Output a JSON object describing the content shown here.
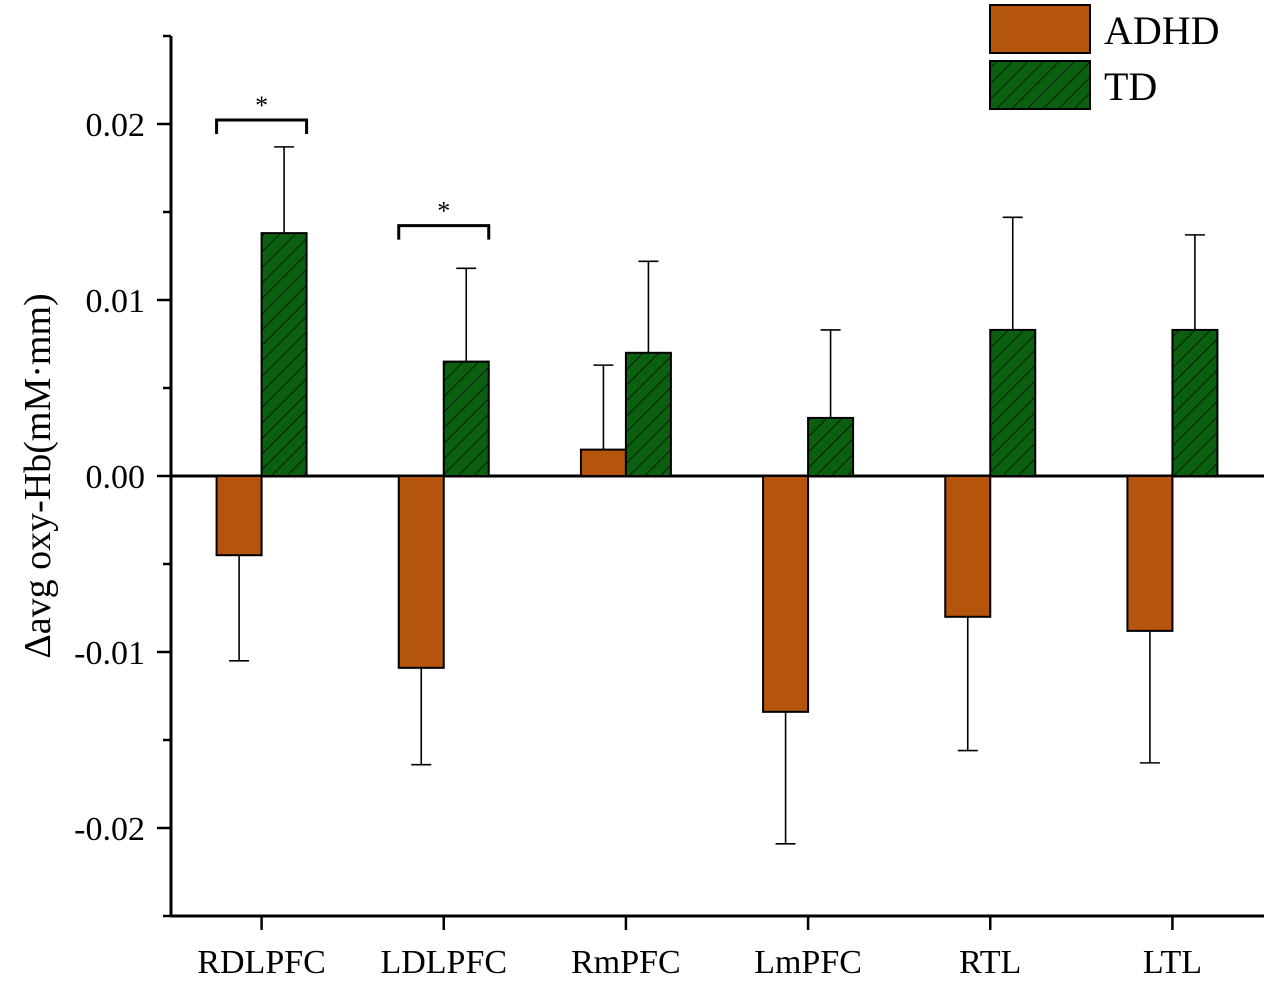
{
  "chart_data": {
    "type": "bar",
    "title": "",
    "xlabel": "",
    "ylabel": "Δavg oxy-Hb(mM·mm)",
    "ylim": [
      -0.025,
      0.025
    ],
    "yticks": [
      -0.02,
      -0.01,
      0.0,
      0.01,
      0.02
    ],
    "ytick_labels": [
      "-0.02",
      "-0.01",
      "0.00",
      "0.01",
      "0.02"
    ],
    "categories": [
      "RDLPFC",
      "LDLPFC",
      "RmPFC",
      "LmPFC",
      "RTL",
      "LTL"
    ],
    "series": [
      {
        "name": "ADHD",
        "color": "#b5550d",
        "pattern": "solid",
        "values": [
          -0.0045,
          -0.0109,
          0.0015,
          -0.0134,
          -0.008,
          -0.0088
        ],
        "errors": [
          0.006,
          0.0055,
          0.0048,
          0.0075,
          0.0076,
          0.0075
        ]
      },
      {
        "name": "TD",
        "color": "#0b6010",
        "pattern": "hatched",
        "values": [
          0.0138,
          0.0065,
          0.007,
          0.0033,
          0.0083,
          0.0083
        ],
        "errors": [
          0.0049,
          0.0053,
          0.0052,
          0.005,
          0.0064,
          0.0054
        ]
      }
    ],
    "significance": [
      {
        "category_index": 0,
        "label": "*",
        "y": 0.02
      },
      {
        "category_index": 1,
        "label": "*",
        "y": 0.014
      }
    ],
    "legend_position": "top-right",
    "grid": false
  }
}
